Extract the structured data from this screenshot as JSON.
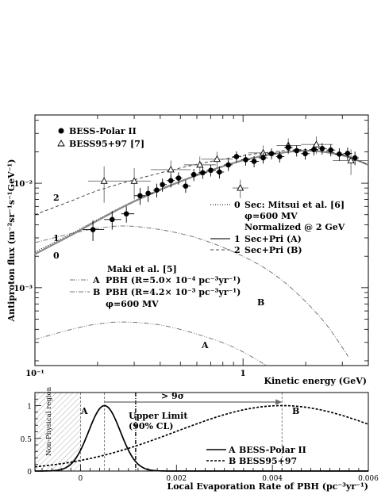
{
  "chart_data": [
    {
      "type": "scatter",
      "xlabel": "Kinetic energy (GeV)",
      "ylabel": "Antiproton flux (m⁻²sr⁻¹s⁻¹GeV⁻¹)",
      "xscale": "log",
      "yscale": "log",
      "xlim": [
        0.1,
        4.0
      ],
      "ylim": [
        0.00018,
        0.045
      ],
      "x_ticks": [
        {
          "v": 0.1,
          "label": "10⁻¹"
        },
        {
          "v": 1,
          "label": "1"
        }
      ],
      "y_ticks": [
        {
          "v": 0.001,
          "label": "10⁻³"
        },
        {
          "v": 0.01,
          "label": "10⁻²"
        }
      ],
      "legend_markers": [
        {
          "name": "BESS-Polar II",
          "marker": "filled-circle"
        },
        {
          "name": "BESS95+97 [7]",
          "marker": "open-triangle"
        }
      ],
      "legend_lines": {
        "row0": {
          "id": "0",
          "text": "Sec: Mitsui et al. [6]",
          "style": "dotted"
        },
        "row0b": "φ=600 MV",
        "row0c": "Normalized @ 2 GeV",
        "row1": {
          "id": "1",
          "text": "Sec+Pri (A)",
          "style": "solid-gray"
        },
        "row2": {
          "id": "2",
          "text": "Sec+Pri (B)",
          "style": "dashed"
        }
      },
      "pbh_legend": {
        "title": "Maki et al. [5]",
        "rowA": {
          "id": "A",
          "text": "PBH (R=5.0× 10⁻⁴ pc⁻³yr⁻¹)",
          "style": "dash-dot-dot"
        },
        "rowB": {
          "id": "B",
          "text": "PBH (R=4.2× 10⁻³ pc⁻³yr⁻¹)",
          "style": "dash-dot"
        },
        "phi": "φ=600 MV"
      },
      "curve_labels": {
        "c0": "0",
        "c1": "1",
        "c2": "2",
        "cA": "A",
        "cB": "B"
      },
      "series": [
        {
          "name": "BESS-Polar II",
          "points": [
            {
              "x": 0.19,
              "y": 0.0036,
              "yerr": 0.0008,
              "xerr": [
                0.17,
                0.215
              ]
            },
            {
              "x": 0.235,
              "y": 0.0045,
              "yerr": 0.0009,
              "xerr": [
                0.215,
                0.26
              ]
            },
            {
              "x": 0.275,
              "y": 0.0051,
              "yerr": 0.0009,
              "xerr": [
                0.26,
                0.3
              ]
            },
            {
              "x": 0.32,
              "y": 0.0076,
              "yerr": 0.0014,
              "xerr": [
                0.3,
                0.34
              ]
            },
            {
              "x": 0.35,
              "y": 0.008,
              "yerr": 0.0014,
              "xerr": [
                0.34,
                0.37
              ]
            },
            {
              "x": 0.385,
              "y": 0.0086,
              "yerr": 0.0013,
              "xerr": [
                0.37,
                0.4
              ]
            },
            {
              "x": 0.41,
              "y": 0.0097,
              "yerr": 0.0014,
              "xerr": [
                0.4,
                0.43
              ]
            },
            {
              "x": 0.45,
              "y": 0.0106,
              "yerr": 0.0015,
              "xerr": [
                0.43,
                0.47
              ]
            },
            {
              "x": 0.49,
              "y": 0.0112,
              "yerr": 0.0015,
              "xerr": [
                0.47,
                0.51
              ]
            },
            {
              "x": 0.53,
              "y": 0.0094,
              "yerr": 0.0013,
              "xerr": [
                0.51,
                0.56
              ]
            },
            {
              "x": 0.58,
              "y": 0.0121,
              "yerr": 0.0016,
              "xerr": [
                0.56,
                0.61
              ]
            },
            {
              "x": 0.64,
              "y": 0.0126,
              "yerr": 0.0016,
              "xerr": [
                0.61,
                0.67
              ]
            },
            {
              "x": 0.7,
              "y": 0.0133,
              "yerr": 0.0017,
              "xerr": [
                0.67,
                0.74
              ]
            },
            {
              "x": 0.77,
              "y": 0.0128,
              "yerr": 0.0017,
              "xerr": [
                0.74,
                0.81
              ]
            },
            {
              "x": 0.85,
              "y": 0.015,
              "yerr": 0.0019,
              "xerr": [
                0.81,
                0.89
              ]
            },
            {
              "x": 0.93,
              "y": 0.018,
              "yerr": 0.0022,
              "xerr": [
                0.89,
                0.98
              ]
            },
            {
              "x": 1.03,
              "y": 0.0168,
              "yerr": 0.0021,
              "xerr": [
                0.98,
                1.08
              ]
            },
            {
              "x": 1.13,
              "y": 0.0162,
              "yerr": 0.002,
              "xerr": [
                1.08,
                1.19
              ]
            },
            {
              "x": 1.25,
              "y": 0.0175,
              "yerr": 0.0021,
              "xerr": [
                1.19,
                1.31
              ]
            },
            {
              "x": 1.37,
              "y": 0.0192,
              "yerr": 0.0023,
              "xerr": [
                1.31,
                1.44
              ]
            },
            {
              "x": 1.5,
              "y": 0.018,
              "yerr": 0.0022,
              "xerr": [
                1.44,
                1.58
              ]
            },
            {
              "x": 1.65,
              "y": 0.022,
              "yerr": 0.0026,
              "xerr": [
                1.58,
                1.73
              ]
            },
            {
              "x": 1.81,
              "y": 0.0205,
              "yerr": 0.0025,
              "xerr": [
                1.73,
                1.9
              ]
            },
            {
              "x": 1.99,
              "y": 0.0192,
              "yerr": 0.0024,
              "xerr": [
                1.9,
                2.09
              ]
            },
            {
              "x": 2.19,
              "y": 0.021,
              "yerr": 0.0026,
              "xerr": [
                2.09,
                2.3
              ]
            },
            {
              "x": 2.4,
              "y": 0.0215,
              "yerr": 0.0027,
              "xerr": [
                2.3,
                2.52
              ]
            },
            {
              "x": 2.64,
              "y": 0.0208,
              "yerr": 0.0027,
              "xerr": [
                2.52,
                2.77
              ]
            },
            {
              "x": 2.9,
              "y": 0.019,
              "yerr": 0.0026,
              "xerr": [
                2.77,
                3.04
              ]
            },
            {
              "x": 3.18,
              "y": 0.0193,
              "yerr": 0.0027,
              "xerr": [
                3.04,
                3.34
              ]
            },
            {
              "x": 3.45,
              "y": 0.0175,
              "yerr": 0.0026,
              "xerr": [
                3.34,
                3.6
              ]
            }
          ]
        },
        {
          "name": "BESS95+97 [7]",
          "points": [
            {
              "x": 0.215,
              "y": 0.0105,
              "yerr": 0.004,
              "xerr": [
                0.18,
                0.25
              ]
            },
            {
              "x": 0.3,
              "y": 0.0105,
              "yerr": 0.0035,
              "xerr": [
                0.25,
                0.36
              ]
            },
            {
              "x": 0.45,
              "y": 0.0135,
              "yerr": 0.003,
              "xerr": [
                0.36,
                0.56
              ]
            },
            {
              "x": 0.62,
              "y": 0.015,
              "yerr": 0.003,
              "xerr": [
                0.52,
                0.74
              ]
            },
            {
              "x": 0.75,
              "y": 0.017,
              "yerr": 0.003,
              "xerr": [
                0.63,
                0.89
              ]
            },
            {
              "x": 0.97,
              "y": 0.009,
              "yerr": 0.0018,
              "xerr": [
                0.89,
                1.06
              ]
            },
            {
              "x": 1.25,
              "y": 0.0195,
              "yerr": 0.0035,
              "xerr": [
                1.06,
                1.45
              ]
            },
            {
              "x": 1.65,
              "y": 0.023,
              "yerr": 0.004,
              "xerr": [
                1.45,
                1.9
              ]
            },
            {
              "x": 2.25,
              "y": 0.0235,
              "yerr": 0.0045,
              "xerr": [
                1.9,
                2.7
              ]
            },
            {
              "x": 3.3,
              "y": 0.0165,
              "yerr": 0.0045,
              "xerr": [
                2.7,
                4.0
              ]
            }
          ]
        }
      ],
      "curves": {
        "c0": [
          [
            0.1,
            0.0022
          ],
          [
            0.15,
            0.0033
          ],
          [
            0.2,
            0.0045
          ],
          [
            0.3,
            0.0068
          ],
          [
            0.5,
            0.0105
          ],
          [
            0.8,
            0.0145
          ],
          [
            1.2,
            0.018
          ],
          [
            2.0,
            0.0205
          ],
          [
            3.0,
            0.0185
          ],
          [
            4.0,
            0.015
          ]
        ],
        "c1": [
          [
            0.1,
            0.0021
          ],
          [
            0.15,
            0.0032
          ],
          [
            0.2,
            0.0044
          ],
          [
            0.3,
            0.0067
          ],
          [
            0.5,
            0.0104
          ],
          [
            0.8,
            0.0145
          ],
          [
            1.2,
            0.018
          ],
          [
            2.0,
            0.0205
          ],
          [
            3.0,
            0.0185
          ],
          [
            4.0,
            0.015
          ]
        ],
        "c2": [
          [
            0.1,
            0.005
          ],
          [
            0.15,
            0.0068
          ],
          [
            0.2,
            0.0085
          ],
          [
            0.3,
            0.0108
          ],
          [
            0.5,
            0.014
          ],
          [
            0.8,
            0.017
          ],
          [
            1.2,
            0.0193
          ],
          [
            2.0,
            0.021
          ],
          [
            3.0,
            0.0188
          ],
          [
            4.0,
            0.015
          ]
        ],
        "cA": [
          [
            0.1,
            0.00032
          ],
          [
            0.15,
            0.0004
          ],
          [
            0.2,
            0.00045
          ],
          [
            0.27,
            0.00047
          ],
          [
            0.4,
            0.00044
          ],
          [
            0.6,
            0.00036
          ],
          [
            0.9,
            0.00027
          ],
          [
            1.3,
            0.00018
          ]
        ],
        "cB": [
          [
            0.1,
            0.0027
          ],
          [
            0.15,
            0.0033
          ],
          [
            0.2,
            0.0037
          ],
          [
            0.27,
            0.0039
          ],
          [
            0.4,
            0.0036
          ],
          [
            0.6,
            0.003
          ],
          [
            0.9,
            0.0022
          ],
          [
            1.3,
            0.0015
          ],
          [
            1.8,
            0.0009
          ],
          [
            2.5,
            0.00045
          ],
          [
            3.2,
            0.00022
          ]
        ]
      }
    },
    {
      "type": "line",
      "xlabel": "Local Evaporation Rate of PBH (pc⁻³yr⁻¹)",
      "xlim": [
        -0.00095,
        0.006
      ],
      "ylim": [
        0,
        1.2
      ],
      "x_ticks": [
        {
          "v": 0,
          "label": "0"
        },
        {
          "v": 0.002,
          "label": "0.002"
        },
        {
          "v": 0.004,
          "label": "0.004"
        },
        {
          "v": 0.006,
          "label": "0.006"
        }
      ],
      "y_ticks": [
        {
          "v": 0,
          "label": "0"
        },
        {
          "v": 0.5,
          "label": "0.5"
        },
        {
          "v": 1,
          "label": "1"
        }
      ],
      "nonphysical_label": "Non-Physical region",
      "upper_limit_label": "Upper Limit",
      "upper_limit_cl": "(90% CL)",
      "upper_limit_x": 0.00115,
      "peak_A_x": 0.0005,
      "peak_B_x": 0.0042,
      "arrow_label": "> 9σ",
      "curve_labels": {
        "a": "A",
        "b": "B"
      },
      "legend": [
        {
          "id": "A",
          "text": "BESS-Polar II",
          "style": "solid"
        },
        {
          "id": "B",
          "text": "BESS95+97",
          "style": "dashed"
        }
      ],
      "series": [
        {
          "name": "BESS-Polar II",
          "mu": 0.0005,
          "sigma": 0.00033,
          "amplitude": 1.0
        },
        {
          "name": "BESS95+97",
          "mu": 0.0042,
          "sigma": 0.0022,
          "amplitude": 1.0
        }
      ]
    }
  ]
}
